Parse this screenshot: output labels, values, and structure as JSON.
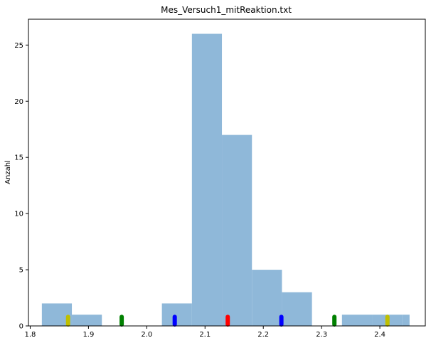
{
  "chart_data": {
    "type": "bar",
    "subtype": "histogram",
    "title": "Mes_Versuch1_mitReaktion.txt",
    "xlabel": "",
    "ylabel": "Anzahl",
    "xlim": [
      1.797,
      2.478
    ],
    "ylim": [
      0,
      27.3
    ],
    "x_ticks": [
      "1.8",
      "1.9",
      "2.0",
      "2.1",
      "2.2",
      "2.3",
      "2.4"
    ],
    "y_ticks": [
      "0",
      "5",
      "10",
      "15",
      "20",
      "25"
    ],
    "x_tick_values": [
      1.8,
      1.9,
      2.0,
      2.1,
      2.2,
      2.3,
      2.4
    ],
    "y_tick_values": [
      0,
      5,
      10,
      15,
      20,
      25
    ],
    "grid": false,
    "bar_color": "#8fb8d9",
    "bins": [
      {
        "x0": 1.82,
        "x1": 1.8715,
        "count": 2
      },
      {
        "x0": 1.8715,
        "x1": 1.923,
        "count": 1
      },
      {
        "x0": 1.923,
        "x1": 1.9745,
        "count": 0
      },
      {
        "x0": 1.9745,
        "x1": 2.026,
        "count": 0
      },
      {
        "x0": 2.026,
        "x1": 2.0775,
        "count": 2
      },
      {
        "x0": 2.0775,
        "x1": 2.129,
        "count": 26
      },
      {
        "x0": 2.129,
        "x1": 2.1805,
        "count": 17
      },
      {
        "x0": 2.1805,
        "x1": 2.232,
        "count": 5
      },
      {
        "x0": 2.232,
        "x1": 2.2835,
        "count": 3
      },
      {
        "x0": 2.2835,
        "x1": 2.335,
        "count": 0
      },
      {
        "x0": 2.335,
        "x1": 2.3865,
        "count": 1
      },
      {
        "x0": 2.3865,
        "x1": 2.438,
        "count": 1
      },
      {
        "x0": 2.438,
        "x1": 2.451,
        "count": 1
      }
    ],
    "markers": [
      {
        "x": 1.865,
        "height": 1,
        "color": "#bfbf00"
      },
      {
        "x": 1.957,
        "height": 1,
        "color": "#008000"
      },
      {
        "x": 2.048,
        "height": 1,
        "color": "#0000ff"
      },
      {
        "x": 2.139,
        "height": 1,
        "color": "#ff0000"
      },
      {
        "x": 2.231,
        "height": 1,
        "color": "#0000ff"
      },
      {
        "x": 2.322,
        "height": 1,
        "color": "#008000"
      },
      {
        "x": 2.413,
        "height": 1,
        "color": "#bfbf00"
      }
    ]
  }
}
